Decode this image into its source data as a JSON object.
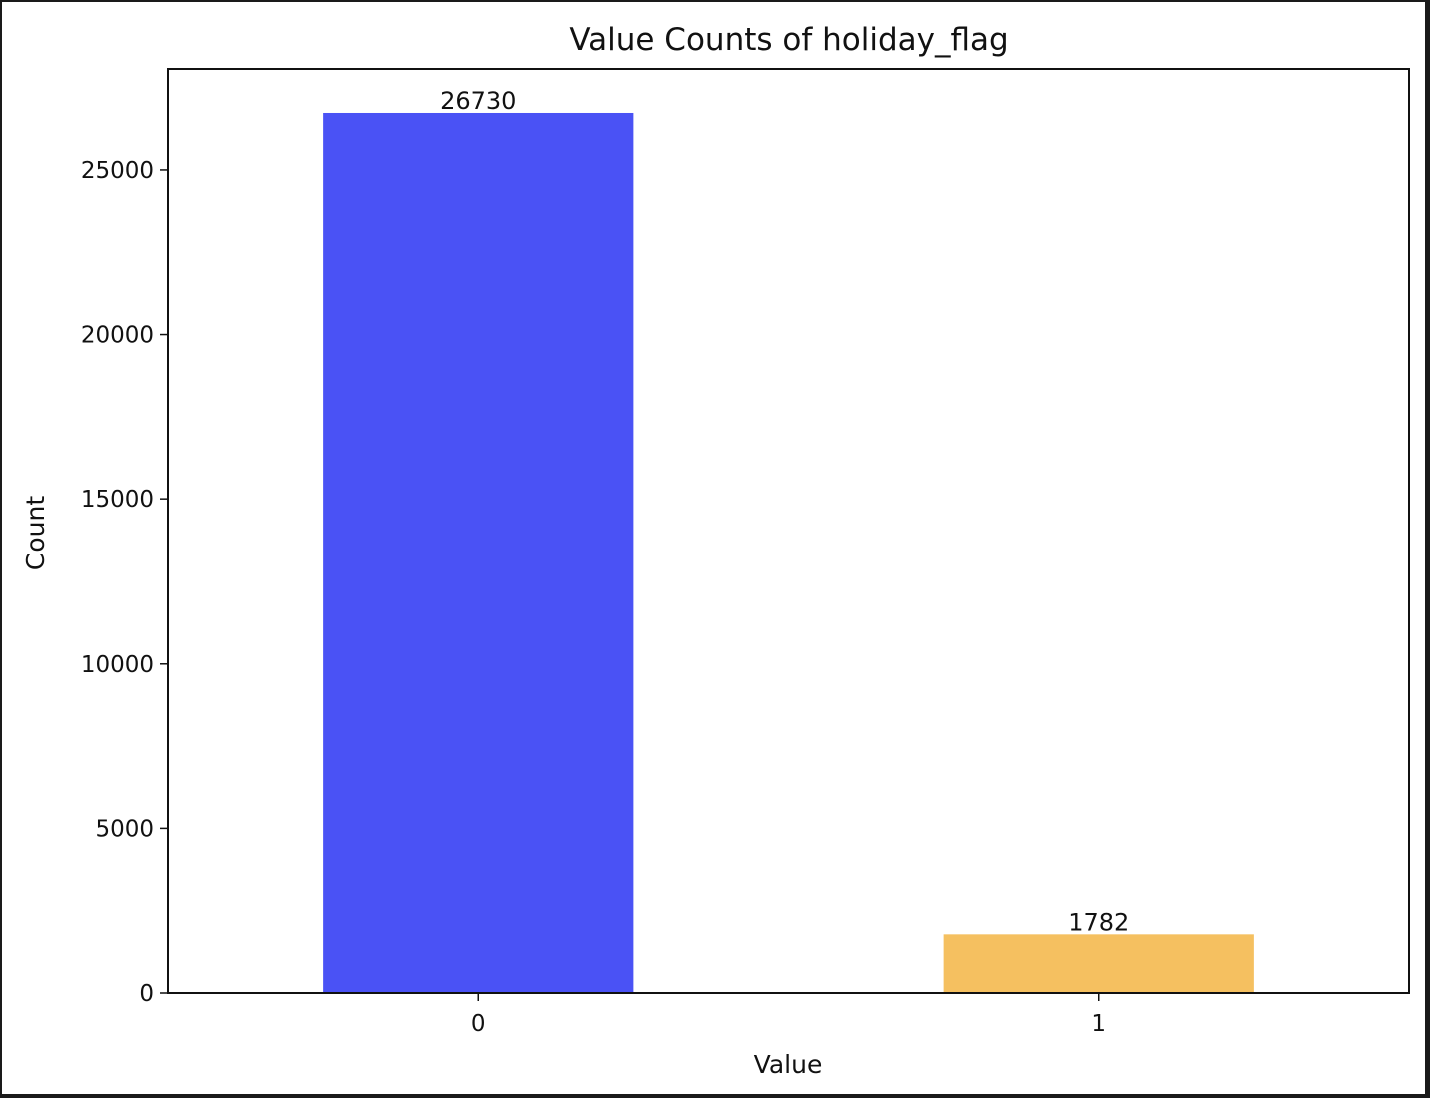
{
  "chart_data": {
    "type": "bar",
    "title": "Value Counts of holiday_flag",
    "xlabel": "Value",
    "ylabel": "Count",
    "categories": [
      "0",
      "1"
    ],
    "values": [
      26730,
      1782
    ],
    "bar_colors": [
      "#4a52f5",
      "#f5c060"
    ],
    "ylim": [
      0,
      28066
    ],
    "yticks": [
      0,
      5000,
      10000,
      15000,
      20000,
      25000
    ],
    "grid": false,
    "legend": "none"
  }
}
